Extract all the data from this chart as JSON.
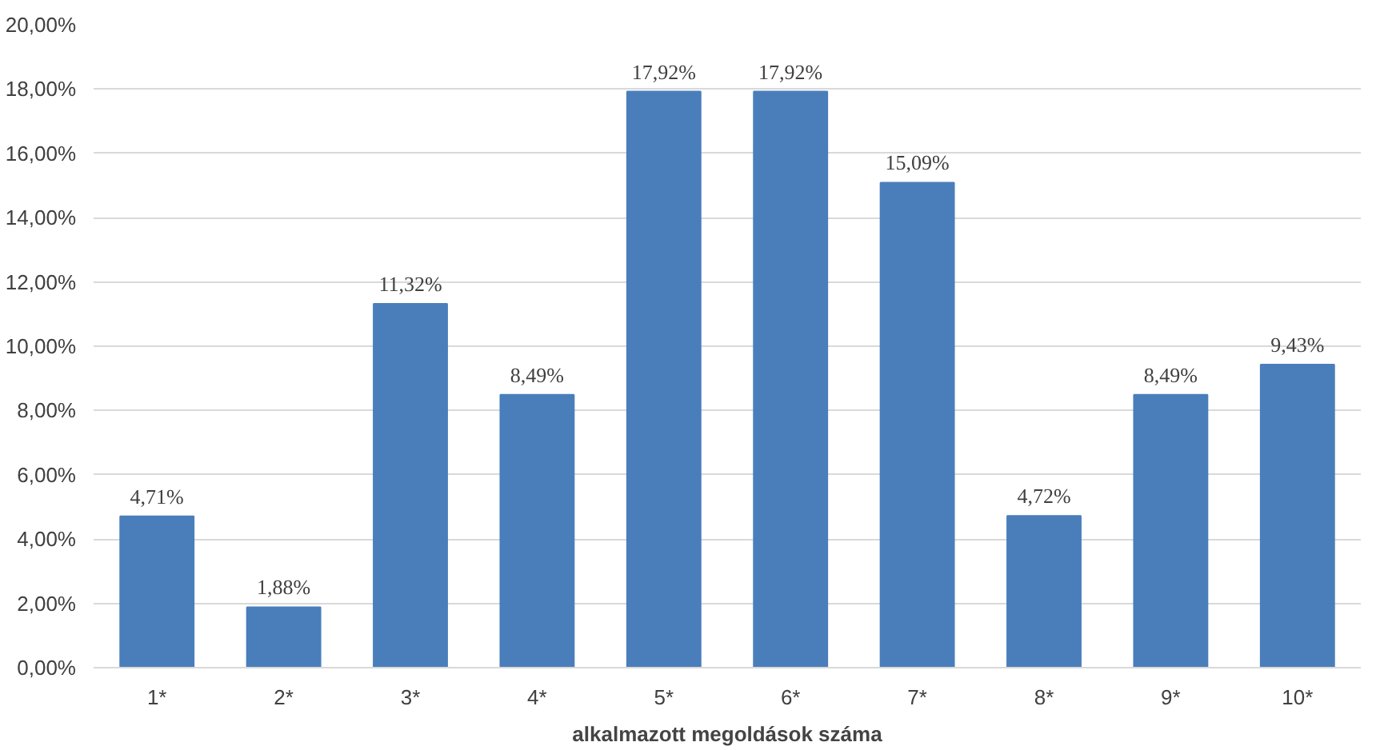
{
  "chart_data": {
    "type": "bar",
    "xlabel": "alkalmazott megoldások száma",
    "categories": [
      "1*",
      "2*",
      "3*",
      "4*",
      "5*",
      "6*",
      "7*",
      "8*",
      "9*",
      "10*"
    ],
    "values": [
      4.71,
      1.88,
      11.32,
      8.49,
      17.92,
      17.92,
      15.09,
      4.72,
      8.49,
      9.43
    ],
    "value_labels": [
      "4,71%",
      "1,88%",
      "11,32%",
      "8,49%",
      "17,92%",
      "17,92%",
      "15,09%",
      "4,72%",
      "8,49%",
      "9,43%"
    ],
    "color": "#4a7ebb",
    "ylim": [
      0,
      20
    ],
    "yticks": [
      {
        "value": 0,
        "label": "0,00%"
      },
      {
        "value": 2,
        "label": "2,00%"
      },
      {
        "value": 4,
        "label": "4,00%"
      },
      {
        "value": 6,
        "label": "6,00%"
      },
      {
        "value": 8,
        "label": "8,00%"
      },
      {
        "value": 10,
        "label": "10,00%"
      },
      {
        "value": 12,
        "label": "12,00%"
      },
      {
        "value": 14,
        "label": "14,00%"
      },
      {
        "value": 16,
        "label": "16,00%"
      },
      {
        "value": 18,
        "label": "18,00%"
      },
      {
        "value": 20,
        "label": "20,00%"
      }
    ],
    "grid": "y"
  }
}
